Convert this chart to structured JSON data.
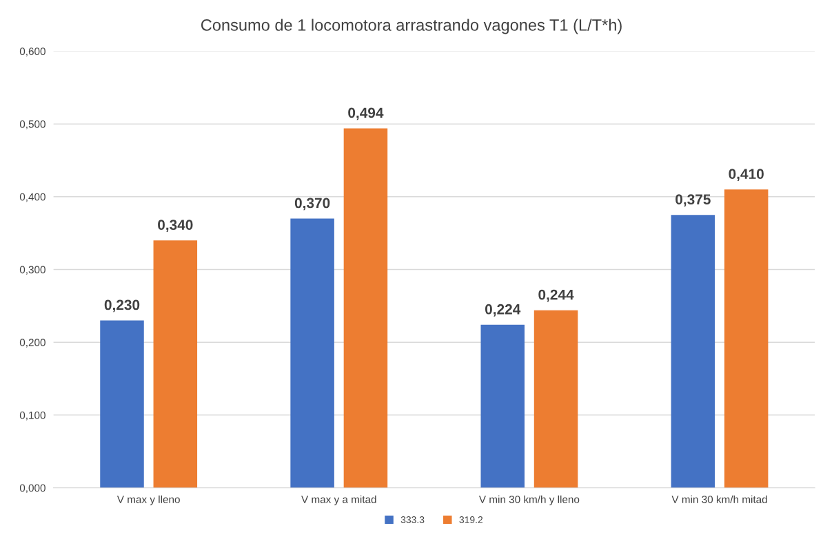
{
  "chart_data": {
    "type": "bar",
    "title": "Consumo de 1 locomotora arrastrando vagones T1 (L/T*h)",
    "categories": [
      "V max y lleno",
      "V max y a mitad",
      "V min 30 km/h y lleno",
      "V min 30 km/h mitad"
    ],
    "series": [
      {
        "name": "333.3",
        "color": "#4472c4",
        "values": [
          0.23,
          0.37,
          0.224,
          0.375
        ],
        "value_labels": [
          "0,230",
          "0,370",
          "0,224",
          "0,375"
        ]
      },
      {
        "name": "319.2",
        "color": "#ed7d31",
        "values": [
          0.34,
          0.494,
          0.244,
          0.41
        ],
        "value_labels": [
          "0,340",
          "0,494",
          "0,244",
          "0,410"
        ]
      }
    ],
    "ylim": [
      0,
      0.6
    ],
    "yticks": [
      {
        "value": 0,
        "label": "0,000"
      },
      {
        "value": 0.1,
        "label": "0,100"
      },
      {
        "value": 0.2,
        "label": "0,200"
      },
      {
        "value": 0.3,
        "label": "0,300"
      },
      {
        "value": 0.4,
        "label": "0,400"
      },
      {
        "value": 0.5,
        "label": "0,500"
      },
      {
        "value": 0.6,
        "label": "0,600"
      }
    ],
    "grid": "y",
    "legend": "bottom"
  }
}
